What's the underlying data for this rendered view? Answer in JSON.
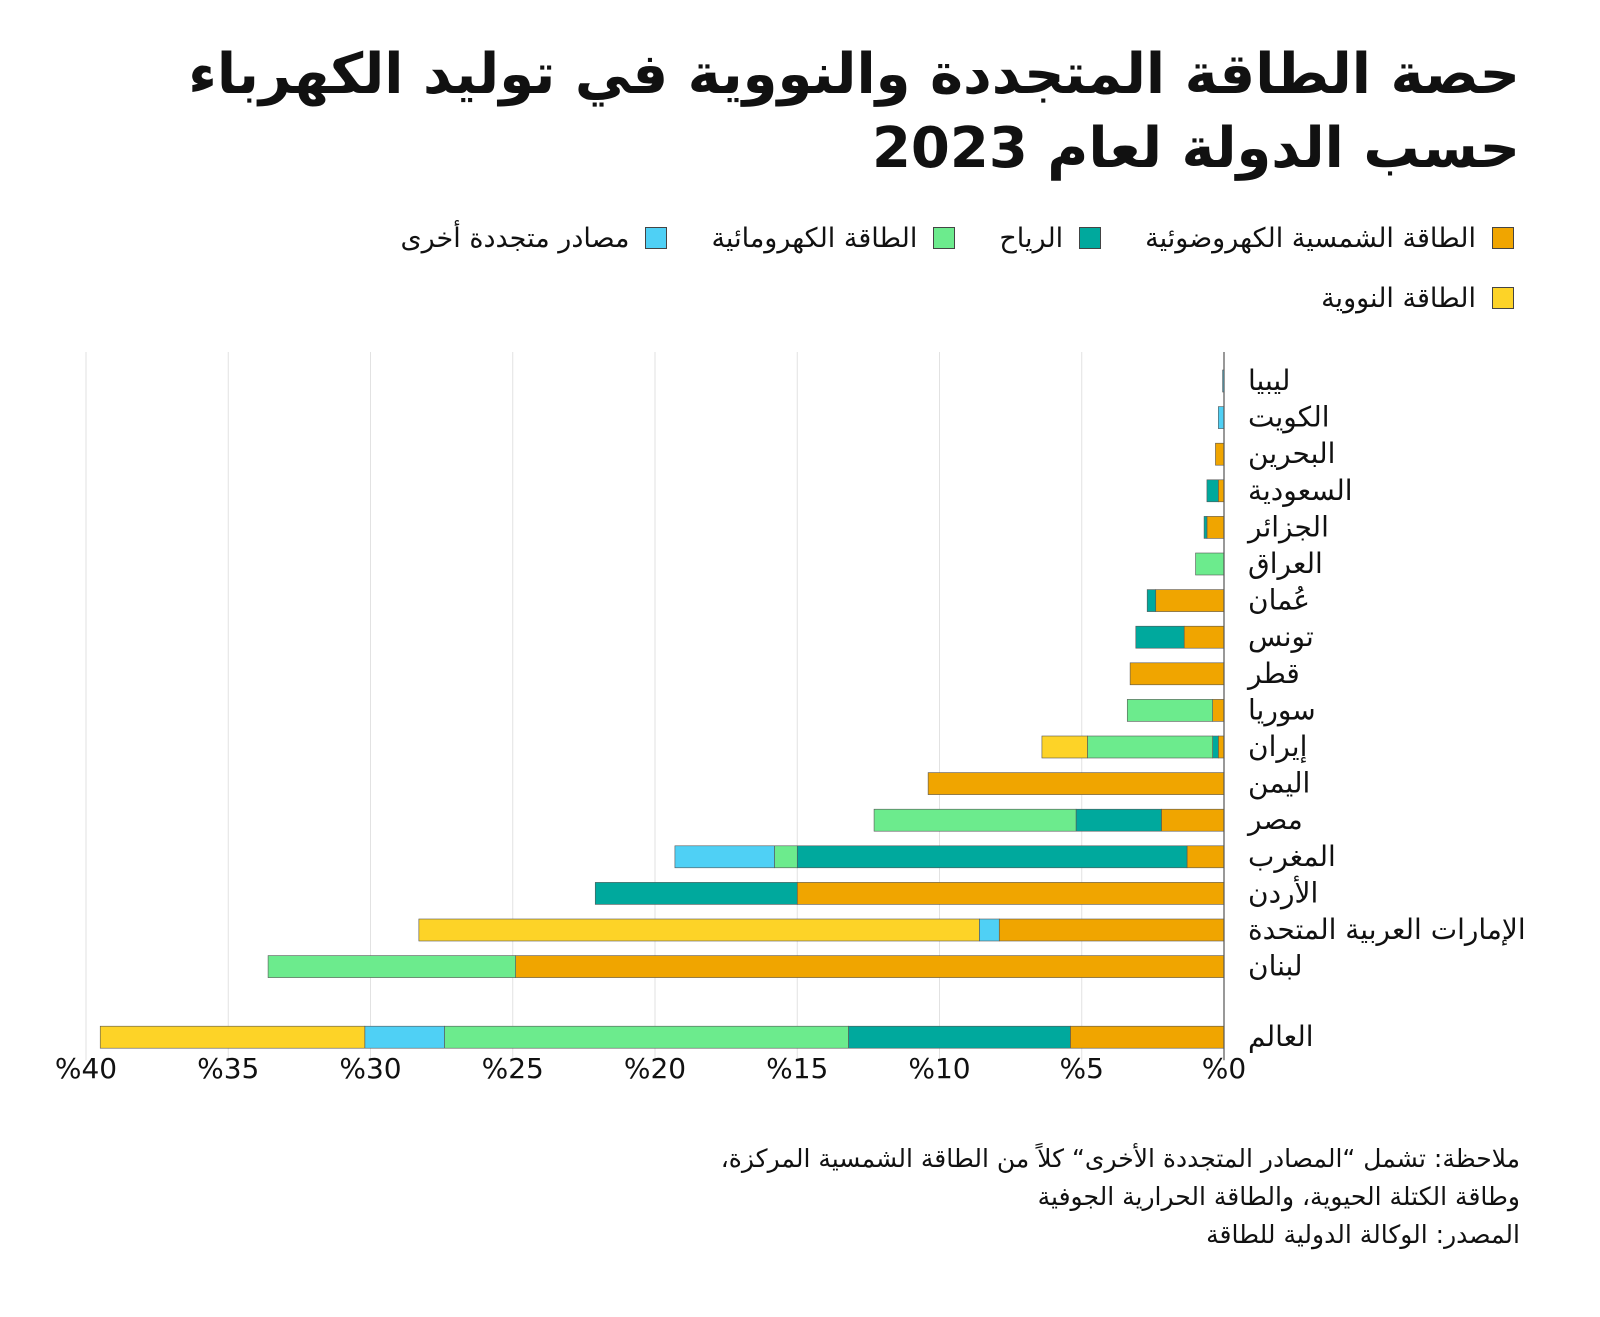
{
  "title": {
    "line1": "حصة الطاقة المتجددة والنووية في توليد الكهرباء",
    "line2": "حسب الدولة لعام 2023"
  },
  "legend": {
    "solar": "الطاقة الشمسية الكهروضوئية",
    "wind": "الرياح",
    "hydro": "الطاقة الكهرومائية",
    "other": "مصادر متجددة أخرى",
    "nuclear": "الطاقة النووية"
  },
  "colors": {
    "solar": "#F0A500",
    "wind": "#00A99D",
    "hydro": "#6CEB8D",
    "other": "#4FD0F5",
    "nuclear": "#FDD327"
  },
  "chart_data": {
    "type": "bar",
    "orientation": "horizontal",
    "stacked": true,
    "x_direction": "right-to-left",
    "categories": [
      "ليبيا",
      "الكويت",
      "البحرين",
      "السعودية",
      "الجزائر",
      "العراق",
      "عُمان",
      "تونس",
      "قطر",
      "سوريا",
      "إيران",
      "اليمن",
      "مصر",
      "المغرب",
      "الأردن",
      "الإمارات العربية المتحدة",
      "لبنان",
      "العالم"
    ],
    "series": [
      {
        "key": "solar",
        "name": "الطاقة الشمسية الكهروضوئية",
        "values": [
          0.0,
          0.0,
          0.3,
          0.2,
          0.6,
          0.0,
          2.4,
          1.4,
          3.3,
          0.4,
          0.2,
          10.4,
          2.2,
          1.3,
          15.0,
          7.9,
          24.9,
          5.4
        ]
      },
      {
        "key": "wind",
        "name": "الرياح",
        "values": [
          0.0,
          0.0,
          0.0,
          0.4,
          0.1,
          0.0,
          0.3,
          1.7,
          0.0,
          0.0,
          0.2,
          0.0,
          3.0,
          13.7,
          7.1,
          0.0,
          0.0,
          7.8
        ]
      },
      {
        "key": "hydro",
        "name": "الطاقة الكهرومائية",
        "values": [
          0.0,
          0.0,
          0.0,
          0.0,
          0.0,
          1.0,
          0.0,
          0.0,
          0.0,
          3.0,
          4.4,
          0.0,
          7.1,
          0.8,
          0.0,
          0.0,
          8.7,
          14.2
        ]
      },
      {
        "key": "other",
        "name": "مصادر متجددة أخرى",
        "values": [
          0.05,
          0.2,
          0.0,
          0.0,
          0.0,
          0.0,
          0.0,
          0.0,
          0.0,
          0.0,
          0.0,
          0.0,
          0.0,
          3.5,
          0.0,
          0.7,
          0.0,
          2.8
        ]
      },
      {
        "key": "nuclear",
        "name": "الطاقة النووية",
        "values": [
          0.0,
          0.0,
          0.0,
          0.0,
          0.0,
          0.0,
          0.0,
          0.0,
          0.0,
          0.0,
          1.6,
          0.0,
          0.0,
          0.0,
          0.0,
          19.7,
          0.0,
          9.3
        ]
      }
    ],
    "x_ticks": [
      "%0",
      "%5",
      "%10",
      "%15",
      "%20",
      "%25",
      "%30",
      "%35",
      "%40"
    ],
    "xlim": [
      0,
      40
    ],
    "grid": true
  },
  "notes": {
    "line1": "ملاحظة: تشمل “المصادر المتجددة الأخرى“ كلاً من الطاقة الشمسية المركزة،",
    "line2": "وطاقة الكتلة الحيوية، والطاقة الحرارية الجوفية",
    "line3": "المصدر: الوكالة الدولية للطاقة"
  }
}
